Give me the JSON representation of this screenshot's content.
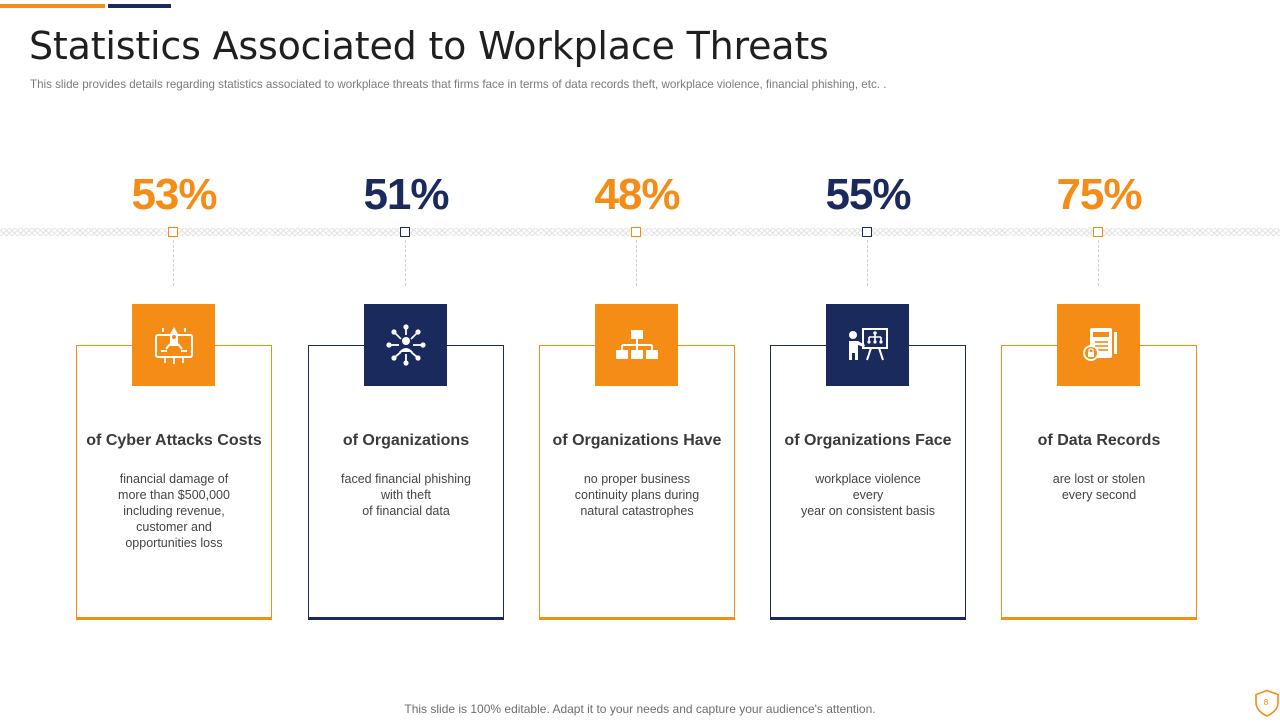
{
  "header": {
    "title": "Statistics Associated to Workplace Threats",
    "subtitle": "This slide provides details regarding statistics associated to workplace threats that firms face in terms of data records theft, workplace violence, financial phishing, etc. ."
  },
  "colors": {
    "accent": "#f48c16",
    "navy": "#1b2a5c"
  },
  "stats": [
    {
      "percent": "53%",
      "title": "of Cyber Attacks Costs",
      "description": "financial damage of\nmore than $500,000\nincluding revenue,\ncustomer and\nopportunities loss",
      "icon": "cyber-attack-icon",
      "theme": "orange"
    },
    {
      "percent": "51%",
      "title": "of Organizations",
      "description": "faced financial phishing\nwith theft\nof financial data",
      "icon": "network-people-icon",
      "theme": "navy"
    },
    {
      "percent": "48%",
      "title": "of Organizations Have",
      "description": "no proper business\ncontinuity plans during\nnatural catastrophes",
      "icon": "org-chart-icon",
      "theme": "orange"
    },
    {
      "percent": "55%",
      "title": "of Organizations Face",
      "description": "workplace violence every\nyear on consistent basis",
      "icon": "presentation-icon",
      "theme": "navy"
    },
    {
      "percent": "75%",
      "title": "of Data Records",
      "description": "are lost or stolen\nevery second",
      "icon": "data-record-icon",
      "theme": "orange"
    }
  ],
  "footer": {
    "text": "This slide is 100% editable. Adapt it to your needs and capture your audience's attention."
  },
  "page_number": "8"
}
